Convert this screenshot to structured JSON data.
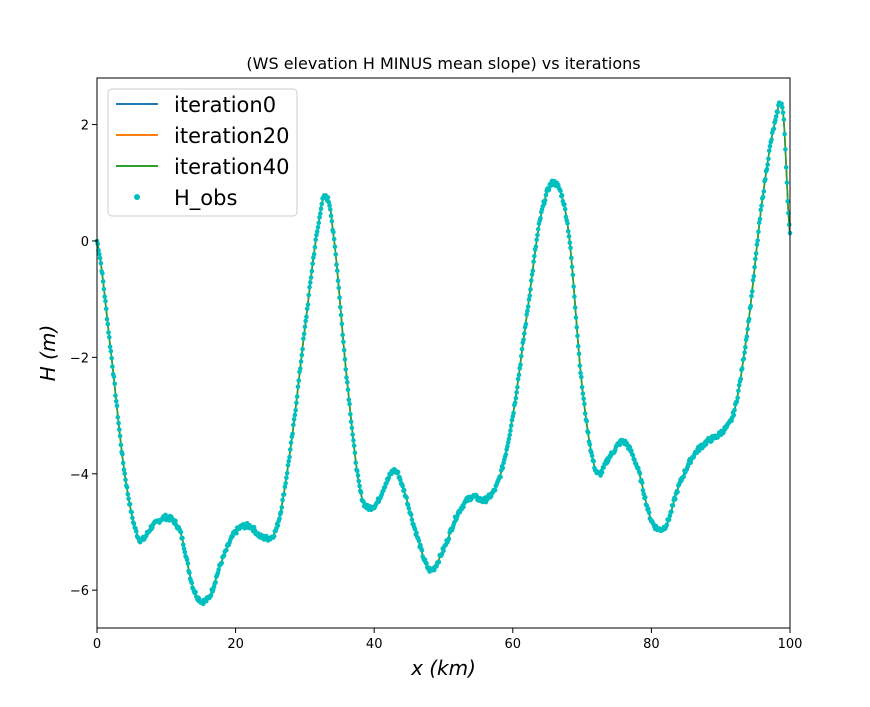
{
  "chart_data": {
    "type": "line",
    "title": "(WS elevation H MINUS mean slope) vs iterations",
    "xlabel": "x (km)",
    "ylabel": "H (m)",
    "xlim": [
      0,
      100
    ],
    "ylim": [
      -6.65,
      2.8
    ],
    "xticks": [
      0,
      20,
      40,
      60,
      80,
      100
    ],
    "yticks": [
      -6,
      -4,
      -2,
      0,
      2
    ],
    "xtick_labels": [
      "0",
      "20",
      "40",
      "60",
      "80",
      "100"
    ],
    "ytick_labels": [
      "−6",
      "−4",
      "−2",
      "0",
      "2"
    ],
    "legend_position": "upper-left",
    "grid": false,
    "x": [
      0,
      2,
      4,
      6,
      8,
      10,
      12,
      14,
      16,
      18,
      20,
      22,
      24,
      26,
      28,
      30,
      32,
      33,
      34,
      36,
      38,
      40,
      42,
      43,
      44,
      46,
      48,
      50,
      52,
      54,
      56,
      58,
      60,
      62,
      64,
      66,
      68,
      70,
      72,
      74,
      76,
      78,
      80,
      82,
      84,
      86,
      88,
      90,
      92,
      94,
      96,
      98,
      99,
      100
    ],
    "series": [
      {
        "name": "iteration0",
        "style": "line",
        "color": "#1f77b4",
        "values": [
          0.0,
          -1.9,
          -4.0,
          -5.1,
          -4.9,
          -4.75,
          -5.0,
          -6.0,
          -6.15,
          -5.5,
          -5.0,
          -4.9,
          -5.1,
          -4.9,
          -3.5,
          -1.5,
          0.3,
          0.75,
          0.2,
          -2.3,
          -4.3,
          -4.55,
          -4.1,
          -3.95,
          -4.2,
          -5.0,
          -5.65,
          -5.3,
          -4.7,
          -4.4,
          -4.45,
          -4.1,
          -3.0,
          -1.3,
          0.4,
          1.0,
          0.2,
          -2.5,
          -3.95,
          -3.7,
          -3.45,
          -3.9,
          -4.8,
          -4.9,
          -4.2,
          -3.7,
          -3.45,
          -3.3,
          -2.9,
          -1.4,
          0.7,
          2.1,
          2.2,
          0.1
        ]
      },
      {
        "name": "iteration20",
        "style": "line",
        "color": "#ff7f0e",
        "values": [
          0.0,
          -1.9,
          -4.0,
          -5.1,
          -4.9,
          -4.75,
          -5.0,
          -6.0,
          -6.15,
          -5.5,
          -5.0,
          -4.9,
          -5.1,
          -4.9,
          -3.5,
          -1.5,
          0.3,
          0.75,
          0.2,
          -2.3,
          -4.3,
          -4.55,
          -4.1,
          -3.95,
          -4.2,
          -5.0,
          -5.65,
          -5.3,
          -4.7,
          -4.4,
          -4.45,
          -4.1,
          -3.0,
          -1.3,
          0.4,
          1.0,
          0.2,
          -2.5,
          -3.95,
          -3.7,
          -3.45,
          -3.9,
          -4.8,
          -4.9,
          -4.2,
          -3.7,
          -3.45,
          -3.3,
          -2.9,
          -1.4,
          0.7,
          2.1,
          2.2,
          0.1
        ]
      },
      {
        "name": "iteration40",
        "style": "line",
        "color": "#2ca02c",
        "values": [
          0.0,
          -1.9,
          -4.0,
          -5.1,
          -4.9,
          -4.75,
          -5.0,
          -6.0,
          -6.15,
          -5.5,
          -5.0,
          -4.9,
          -5.1,
          -4.9,
          -3.5,
          -1.5,
          0.3,
          0.75,
          0.2,
          -2.3,
          -4.3,
          -4.55,
          -4.1,
          -3.95,
          -4.2,
          -5.0,
          -5.65,
          -5.3,
          -4.7,
          -4.4,
          -4.45,
          -4.1,
          -3.0,
          -1.3,
          0.4,
          1.0,
          0.2,
          -2.5,
          -3.95,
          -3.7,
          -3.45,
          -3.9,
          -4.8,
          -4.9,
          -4.2,
          -3.7,
          -3.45,
          -3.3,
          -2.9,
          -1.4,
          0.7,
          2.1,
          2.2,
          0.1
        ]
      },
      {
        "name": "H_obs",
        "style": "markers",
        "color": "#00bfbf",
        "values": [
          0.0,
          -1.9,
          -4.0,
          -5.1,
          -4.9,
          -4.75,
          -5.0,
          -6.0,
          -6.15,
          -5.5,
          -5.0,
          -4.9,
          -5.1,
          -4.9,
          -3.5,
          -1.5,
          0.3,
          0.75,
          0.2,
          -2.3,
          -4.3,
          -4.55,
          -4.1,
          -3.95,
          -4.2,
          -5.0,
          -5.65,
          -5.3,
          -4.7,
          -4.4,
          -4.45,
          -4.1,
          -3.0,
          -1.3,
          0.4,
          1.0,
          0.2,
          -2.5,
          -3.95,
          -3.7,
          -3.45,
          -3.9,
          -4.8,
          -4.9,
          -4.2,
          -3.7,
          -3.45,
          -3.3,
          -2.9,
          -1.4,
          0.7,
          2.1,
          2.2,
          0.1
        ]
      }
    ]
  }
}
